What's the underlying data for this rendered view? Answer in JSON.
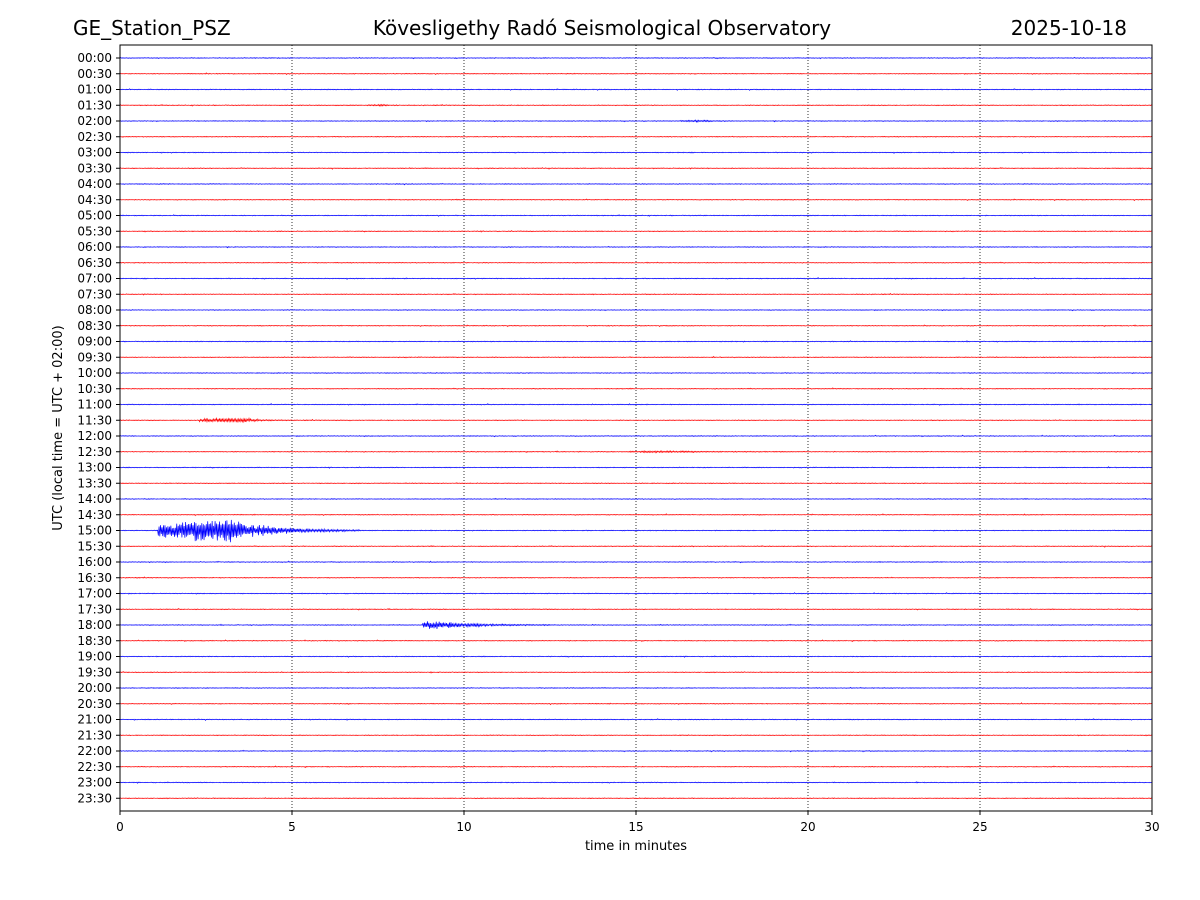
{
  "header": {
    "station": "GE_Station_PSZ",
    "observatory": "Kövesligethy Radó Seismological Observatory",
    "date": "2025-10-18"
  },
  "chart_data": {
    "type": "line",
    "title": "Kövesligethy Radó Seismological Observatory",
    "xlabel": "time in minutes",
    "ylabel": "UTC (local time = UTC + 02:00)",
    "xlim": [
      0,
      30
    ],
    "xticks": [
      0,
      5,
      10,
      15,
      20,
      25,
      30
    ],
    "xtick_labels": [
      "0",
      "5",
      "10",
      "15",
      "20",
      "25",
      "30"
    ],
    "vertical_gridlines_at": [
      5,
      10,
      15,
      20,
      25
    ],
    "grid_style": "dotted",
    "trace_colors": [
      "#0000ff",
      "#ff0000"
    ],
    "trace_labels": [
      "00:00",
      "00:30",
      "01:00",
      "01:30",
      "02:00",
      "02:30",
      "03:00",
      "03:30",
      "04:00",
      "04:30",
      "05:00",
      "05:30",
      "06:00",
      "06:30",
      "07:00",
      "07:30",
      "08:00",
      "08:30",
      "09:00",
      "09:30",
      "10:00",
      "10:30",
      "11:00",
      "11:30",
      "12:00",
      "12:30",
      "13:00",
      "13:30",
      "14:00",
      "14:30",
      "15:00",
      "15:30",
      "16:00",
      "16:30",
      "17:00",
      "17:30",
      "18:00",
      "18:30",
      "19:00",
      "19:30",
      "20:00",
      "20:30",
      "21:00",
      "21:30",
      "22:00",
      "22:30",
      "23:00",
      "23:30"
    ],
    "noise_amplitude": 0.02,
    "events": [
      {
        "trace": "15:00",
        "start_min": 1.1,
        "peak_min": 3.0,
        "end_min": 7.0,
        "amplitude": 0.9
      },
      {
        "trace": "18:00",
        "start_min": 8.8,
        "peak_min": 8.9,
        "end_min": 12.5,
        "amplitude": 0.35
      },
      {
        "trace": "11:30",
        "start_min": 2.3,
        "peak_min": 3.6,
        "end_min": 5.0,
        "amplitude": 0.15
      },
      {
        "trace": "12:30",
        "start_min": 14.8,
        "peak_min": 15.8,
        "end_min": 20.0,
        "amplitude": 0.05
      },
      {
        "trace": "02:00",
        "start_min": 16.3,
        "peak_min": 17.0,
        "end_min": 17.8,
        "amplitude": 0.05
      },
      {
        "trace": "01:30",
        "start_min": 7.2,
        "peak_min": 7.7,
        "end_min": 8.2,
        "amplitude": 0.05
      }
    ]
  }
}
